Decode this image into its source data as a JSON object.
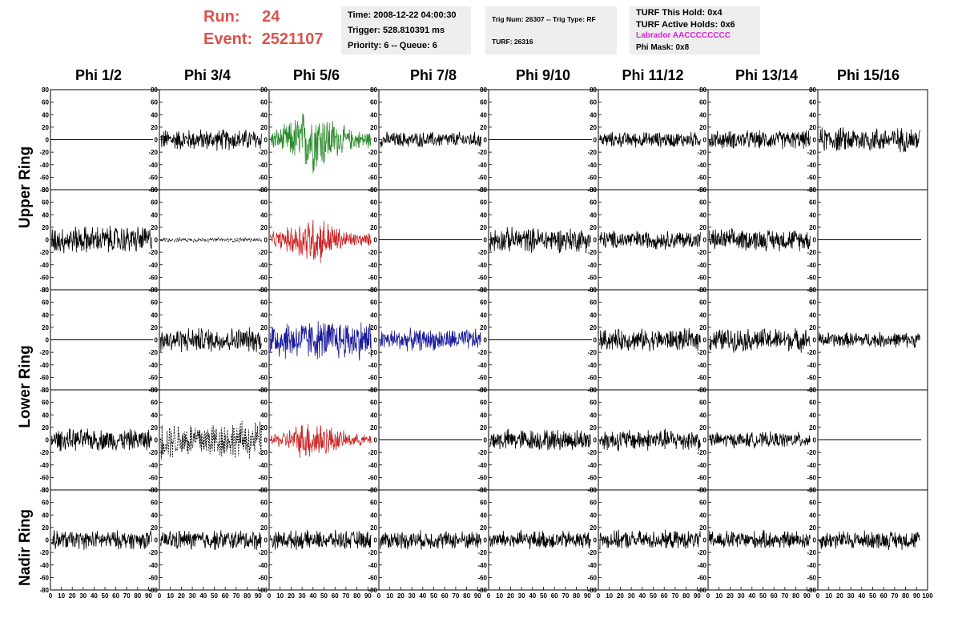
{
  "header": {
    "run_label": "Run:",
    "run_value": "24",
    "event_label": "Event:",
    "event_value": "2521107",
    "run_color": "#d9534f"
  },
  "info_time": {
    "time": "Time: 2008-12-22 04:00:30",
    "trigger": "Trigger: 528.810391 ms",
    "priority": "Priority: 6 -- Queue: 6"
  },
  "info_trig": {
    "trig": "Trig Num: 26307 -- Trig Type: RF",
    "turf": "TURF: 26316"
  },
  "info_turf": {
    "hold": "TURF This Hold: 0x4",
    "active": "TURF Active Holds: 0x6",
    "labrador": "Labrador AACCCCCCCC",
    "phimask": "Phi Mask: 0x8",
    "labrador_color": "#e020e0"
  },
  "phi_labels": [
    "Phi 1/2",
    "Phi 3/4",
    "Phi 5/6",
    "Phi 7/8",
    "Phi 9/10",
    "Phi 11/12",
    "Phi 13/14",
    "Phi 15/16"
  ],
  "ring_labels": {
    "upper": "Upper Ring",
    "lower": "Lower Ring",
    "nadir": "Nadir Ring"
  },
  "chart_data": {
    "type": "line",
    "title": "",
    "ylim": [
      -80,
      80
    ],
    "xlim": [
      0,
      100
    ],
    "y_ticks": [
      80,
      60,
      40,
      20,
      0,
      -20,
      -40,
      -60,
      -80
    ],
    "y_tick_labels": [
      "80",
      "60",
      "40",
      "20",
      "0",
      "-20",
      "-40",
      "-60",
      "-80"
    ],
    "x_ticks": [
      0,
      10,
      20,
      30,
      40,
      50,
      60,
      70,
      80,
      90,
      100
    ],
    "x_tick_labels": [
      "0",
      "10",
      "20",
      "30",
      "40",
      "50",
      "60",
      "70",
      "80",
      "90",
      "100"
    ],
    "grid": false,
    "colors": {
      "black": "#000000",
      "green": "#2a8a2a",
      "red": "#cc2222",
      "blue": "#1a1a9a"
    },
    "rows": [
      "Upper Ring",
      "Upper Ring",
      "Lower Ring",
      "Lower Ring",
      "Nadir Ring"
    ],
    "panels": [
      [
        {
          "amp": 0,
          "color": "black"
        },
        {
          "amp": 14,
          "color": "black"
        },
        {
          "amp": 32,
          "color": "green",
          "burst": true
        },
        {
          "amp": 10,
          "color": "black"
        },
        {
          "amp": 0,
          "color": "black"
        },
        {
          "amp": 10,
          "color": "black"
        },
        {
          "amp": 12,
          "color": "black"
        },
        {
          "amp": 16,
          "color": "black"
        }
      ],
      [
        {
          "amp": 18,
          "color": "black"
        },
        {
          "amp": 3,
          "color": "black",
          "dashed": true
        },
        {
          "amp": 24,
          "color": "red",
          "burst": true
        },
        {
          "amp": 0,
          "color": "black"
        },
        {
          "amp": 16,
          "color": "black"
        },
        {
          "amp": 12,
          "color": "black"
        },
        {
          "amp": 14,
          "color": "black"
        },
        {
          "amp": 0,
          "color": "black"
        }
      ],
      [
        {
          "amp": 0,
          "color": "black"
        },
        {
          "amp": 16,
          "color": "black"
        },
        {
          "amp": 26,
          "color": "blue"
        },
        {
          "amp": 14,
          "color": "blue"
        },
        {
          "amp": 0,
          "color": "black"
        },
        {
          "amp": 14,
          "color": "black"
        },
        {
          "amp": 15,
          "color": "black"
        },
        {
          "amp": 10,
          "color": "black"
        }
      ],
      [
        {
          "amp": 14,
          "color": "black"
        },
        {
          "amp": 24,
          "color": "black",
          "dashed": true
        },
        {
          "amp": 20,
          "color": "red",
          "burst": true
        },
        {
          "amp": 0,
          "color": "black"
        },
        {
          "amp": 14,
          "color": "black"
        },
        {
          "amp": 14,
          "color": "black"
        },
        {
          "amp": 10,
          "color": "black"
        },
        {
          "amp": 0,
          "color": "black"
        }
      ],
      [
        {
          "amp": 12,
          "color": "black"
        },
        {
          "amp": 13,
          "color": "black"
        },
        {
          "amp": 12,
          "color": "black"
        },
        {
          "amp": 12,
          "color": "black"
        },
        {
          "amp": 12,
          "color": "black"
        },
        {
          "amp": 12,
          "color": "black"
        },
        {
          "amp": 12,
          "color": "black"
        },
        {
          "amp": 12,
          "color": "black"
        }
      ]
    ]
  }
}
